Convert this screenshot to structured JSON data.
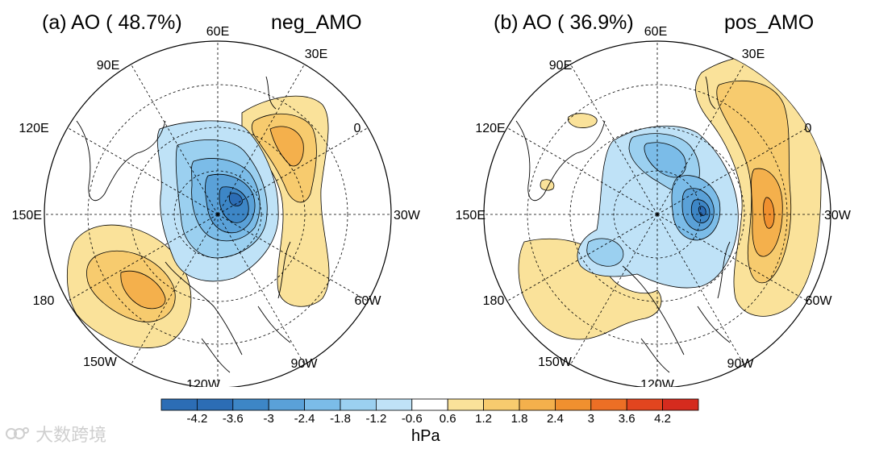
{
  "panels": [
    {
      "label": "(a) AO ( 48.7%)",
      "case": "neg_AMO",
      "lon_labels": [
        "60E",
        "30E",
        "0",
        "30W",
        "60W",
        "90W",
        "120W",
        "150W",
        "180",
        "150E",
        "120E",
        "90E"
      ]
    },
    {
      "label": "(b) AO ( 36.9%)",
      "case": "pos_AMO",
      "lon_labels": [
        "60E",
        "30E",
        "0",
        "30W",
        "60W",
        "90W",
        "120W",
        "150W",
        "180",
        "150E",
        "120E",
        "90E"
      ]
    }
  ],
  "colorbar": {
    "ticks": [
      "-4.2",
      "-3.6",
      "-3",
      "-2.4",
      "-1.8",
      "-1.2",
      "-0.6",
      "0.6",
      "1.2",
      "1.8",
      "2.4",
      "3",
      "3.6",
      "4.2"
    ],
    "colors": [
      "#2c6db5",
      "#3d86c6",
      "#5aa1d8",
      "#7bbce8",
      "#9bd0f0",
      "#bfe2f7",
      "#ffffff",
      "#fae29a",
      "#f7cb6e",
      "#f4b04c",
      "#f0902f",
      "#ec6f25",
      "#e2451f",
      "#d52b1e"
    ],
    "unit": "hPa"
  },
  "watermark": "大数跨境"
}
